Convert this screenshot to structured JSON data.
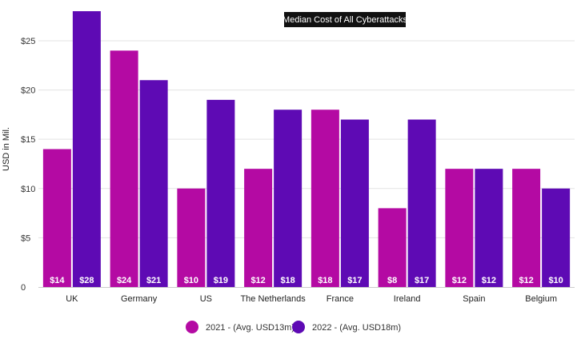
{
  "chart_data": {
    "type": "bar",
    "title": "Median Cost of All Cyberattacks",
    "ylabel": "USD in Mil.",
    "xlabel": "",
    "categories": [
      "UK",
      "Germany",
      "US",
      "The Netherlands",
      "France",
      "Ireland",
      "Spain",
      "Belgium"
    ],
    "series": [
      {
        "name": "2021 - (Avg. USD13m)",
        "color": "#b40aa3",
        "values": [
          14,
          24,
          10,
          12,
          18,
          8,
          12,
          12
        ],
        "labels": [
          "$14",
          "$24",
          "$10",
          "$12",
          "$18",
          "$8",
          "$12",
          "$12"
        ]
      },
      {
        "name": "2022 - (Avg. USD18m)",
        "color": "#5e0ab4",
        "values": [
          28,
          21,
          19,
          18,
          17,
          17,
          12,
          10
        ],
        "labels": [
          "$28",
          "$21",
          "$19",
          "$18",
          "$17",
          "$17",
          "$12",
          "$10"
        ]
      }
    ],
    "ylim": [
      0,
      28
    ],
    "yticks": [
      0,
      5,
      10,
      15,
      20,
      25
    ],
    "ytick_labels": [
      "0",
      "$5",
      "$10",
      "$15",
      "$20",
      "$25"
    ],
    "grid": true,
    "legend_position": "bottom-center"
  }
}
